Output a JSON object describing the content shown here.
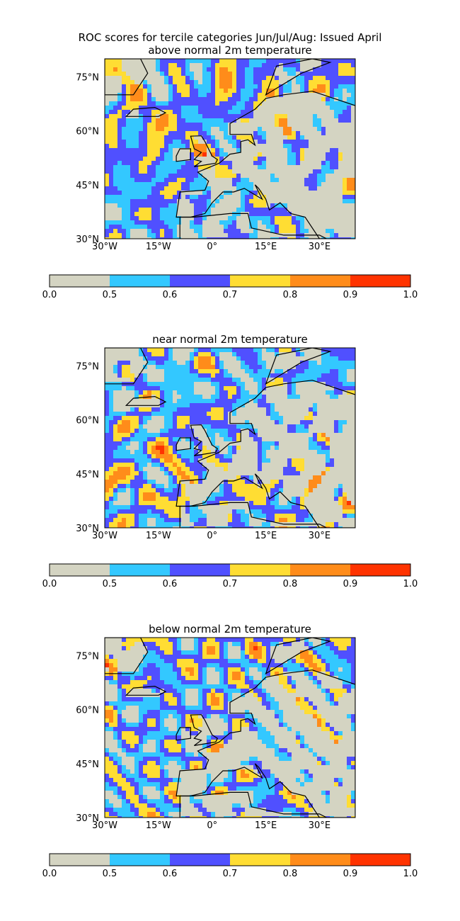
{
  "title_line1": "ROC scores for tercile categories Jun/Jul/Aug: Issued April",
  "palette": {
    "land": "#d4d4c2",
    "levels": [
      "#d4d4c2",
      "#33c8ff",
      "#5050ff",
      "#ffdd33",
      "#ff8c1a",
      "#ff3300"
    ]
  },
  "axes": {
    "xticks": [
      "30°W",
      "15°W",
      "0°",
      "15°E",
      "30°E"
    ],
    "yticks": [
      "75°N",
      "60°N",
      "45°N",
      "30°N"
    ],
    "lon_range": [
      -30,
      40
    ],
    "lat_range": [
      30,
      80
    ]
  },
  "colorbar": {
    "bounds": [
      0.0,
      0.5,
      0.6,
      0.7,
      0.8,
      0.9,
      1.0
    ],
    "tick_labels": [
      "0.0",
      "0.5",
      "0.6",
      "0.7",
      "0.8",
      "0.9",
      "1.0"
    ]
  },
  "panels": [
    {
      "id": "above",
      "title": "above normal 2m temperature",
      "seed": 11,
      "bias": 0.35
    },
    {
      "id": "near",
      "title": "near normal 2m temperature",
      "seed": 23,
      "bias": -0.35
    },
    {
      "id": "below",
      "title": "below normal 2m temperature",
      "seed": 37,
      "bias": 0.25
    }
  ]
}
